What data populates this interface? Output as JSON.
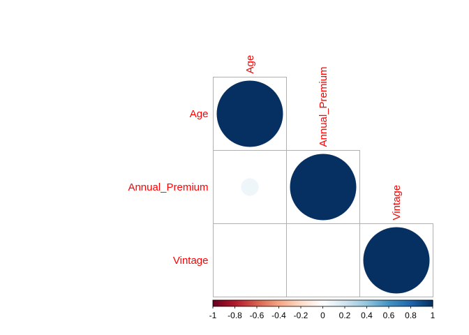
{
  "chart_data": {
    "type": "heatmap",
    "subtype": "correlation-circles-lower-triangle",
    "variables": [
      "Age",
      "Annual_Premium",
      "Vintage"
    ],
    "matrix": [
      [
        1.0,
        null,
        null
      ],
      [
        0.07,
        1.0,
        null
      ],
      [
        0.0,
        0.0,
        1.0
      ]
    ],
    "colorbar": {
      "min": -1,
      "max": 1,
      "ticks": [
        "-1",
        "-0.8",
        "-0.6",
        "-0.4",
        "-0.2",
        "0",
        "0.2",
        "0.4",
        "0.6",
        "0.8",
        "1"
      ],
      "palette": [
        "#67001f",
        "#b2182b",
        "#d6604d",
        "#f4a582",
        "#fddbc7",
        "#ffffff",
        "#d1e5f0",
        "#92c5de",
        "#4393c3",
        "#2166ac",
        "#053061"
      ]
    },
    "label_color": "#ff0000",
    "grid": true
  }
}
